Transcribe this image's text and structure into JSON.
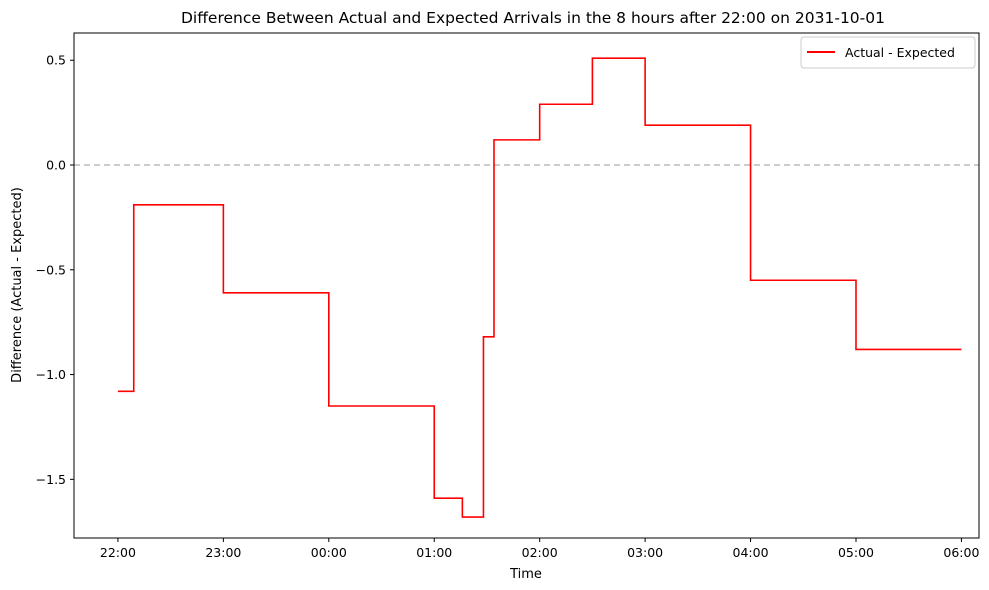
{
  "chart_data": {
    "type": "line",
    "step": "post",
    "title": "Difference Between Actual and Expected Arrivals in the 8 hours after 22:00 on 2031-10-01",
    "xlabel": "Time",
    "ylabel": "Difference (Actual - Expected)",
    "x_tick_labels": [
      "22:00",
      "23:00",
      "00:00",
      "01:00",
      "02:00",
      "03:00",
      "04:00",
      "05:00",
      "06:00"
    ],
    "y_tick_labels": [
      "−1.5",
      "−1.0",
      "−0.5",
      "0.0",
      "0.5"
    ],
    "y_ticks": [
      -1.5,
      -1.0,
      -0.5,
      0.0,
      0.5
    ],
    "ylim": [
      -1.78,
      0.63
    ],
    "xlim": [
      "2031-10-01 21:35",
      "2031-10-02 06:10"
    ],
    "grid": false,
    "legend_position": "top-right",
    "reference_line": {
      "y": 0.0,
      "style": "dashed",
      "color": "#bbbbbb"
    },
    "series": [
      {
        "name": "Actual - Expected",
        "color": "#ff0000",
        "x": [
          "2031-10-01 22:00",
          "2031-10-01 22:09",
          "2031-10-01 23:00",
          "2031-10-02 00:00",
          "2031-10-02 01:00",
          "2031-10-02 01:16",
          "2031-10-02 01:28",
          "2031-10-02 01:34",
          "2031-10-02 02:00",
          "2031-10-02 02:30",
          "2031-10-02 03:00",
          "2031-10-02 04:00",
          "2031-10-02 05:00",
          "2031-10-02 06:00"
        ],
        "y": [
          -1.08,
          -0.19,
          -0.61,
          -1.15,
          -1.59,
          -1.68,
          -0.82,
          0.12,
          0.29,
          0.51,
          0.19,
          -0.55,
          -0.88,
          -0.88
        ]
      }
    ]
  }
}
